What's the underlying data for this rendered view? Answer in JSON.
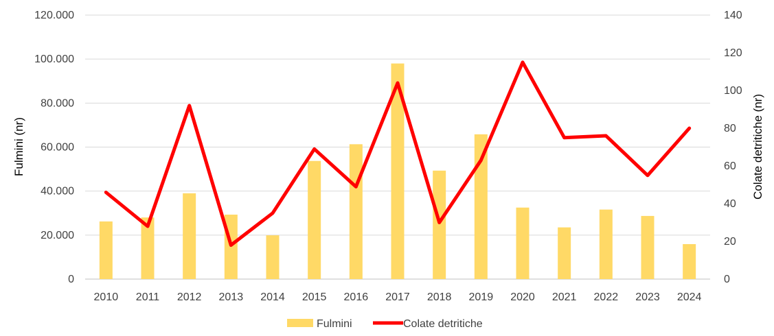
{
  "chart_data": {
    "type": "bar",
    "categories": [
      "2010",
      "2011",
      "2012",
      "2013",
      "2014",
      "2015",
      "2016",
      "2017",
      "2018",
      "2019",
      "2020",
      "2021",
      "2022",
      "2023",
      "2024"
    ],
    "series": [
      {
        "name": "Fulmini",
        "type": "bar",
        "axis": "left",
        "color": "#FFD966",
        "values": [
          26200,
          28000,
          39000,
          29300,
          19900,
          53700,
          61300,
          98000,
          49300,
          65800,
          32500,
          23500,
          31600,
          28700,
          15900
        ]
      },
      {
        "name": "Colate detritiche",
        "type": "line",
        "axis": "right",
        "color": "#FF0000",
        "values": [
          46,
          28,
          92,
          18,
          35,
          69,
          49,
          104,
          30,
          63,
          115,
          75,
          76,
          55,
          80
        ]
      }
    ],
    "ylabel": "Fulmini (nr)",
    "ylabel_right": "Colate detritiche (nr)",
    "ylim": [
      0,
      120000
    ],
    "ylim_right": [
      0,
      140
    ],
    "yticks": [
      "0",
      "20.000",
      "40.000",
      "60.000",
      "80.000",
      "100.000",
      "120.000"
    ],
    "yticks_right": [
      "0",
      "20",
      "40",
      "60",
      "80",
      "100",
      "120",
      "140"
    ],
    "grid": true,
    "legend": "bottom"
  }
}
